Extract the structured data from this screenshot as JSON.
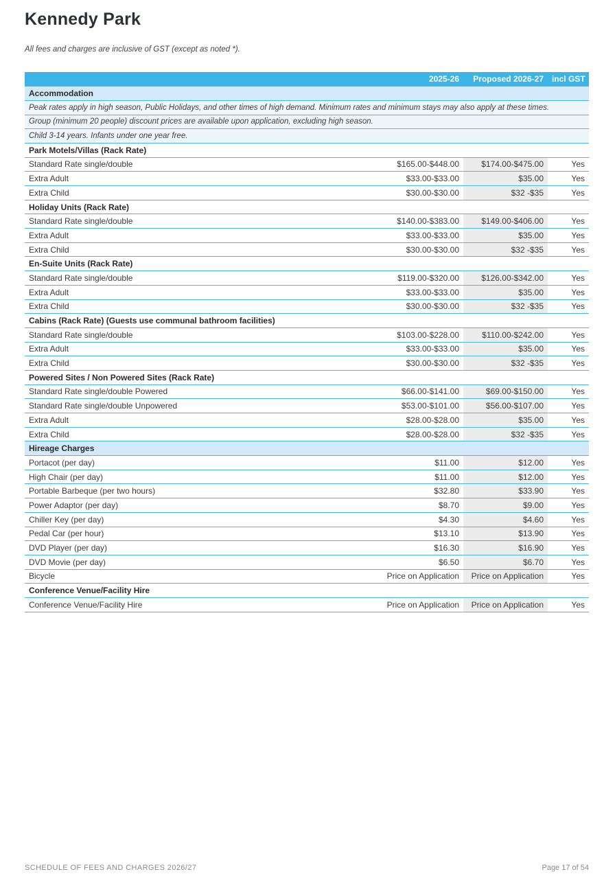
{
  "page": {
    "title": "Kennedy Park",
    "subtitle": "All fees and charges are inclusive of GST (except as noted *).",
    "footer_left": "SCHEDULE OF FEES AND CHARGES 2026/27",
    "footer_right": "Page 17 of 54"
  },
  "table": {
    "headers": [
      "",
      "2025-26",
      "Proposed 2026-27",
      "incl GST"
    ],
    "rows": [
      {
        "type": "section",
        "label": "Accommodation"
      },
      {
        "type": "note",
        "label": "Peak rates apply in high season, Public Holidays, and other times of high demand. Minimum rates and minimum stays may also apply at these times."
      },
      {
        "type": "note",
        "label": "Group (minimum 20 people) discount prices are available upon application, excluding high season."
      },
      {
        "type": "note",
        "label": "Child 3-14 years. Infants under one year free."
      },
      {
        "type": "subhead",
        "label": "Park Motels/Villas (Rack Rate)"
      },
      {
        "type": "item",
        "label": "Standard Rate single/double",
        "current": "$165.00-$448.00",
        "proposed": "$174.00-$475.00",
        "gst": "Yes"
      },
      {
        "type": "item",
        "label": "Extra Adult",
        "current": "$33.00-$33.00",
        "proposed": "$35.00",
        "gst": "Yes"
      },
      {
        "type": "item",
        "label": "Extra Child",
        "current": "$30.00-$30.00",
        "proposed": "$32 -$35",
        "gst": "Yes"
      },
      {
        "type": "subhead",
        "label": "Holiday Units (Rack Rate)"
      },
      {
        "type": "item",
        "label": "Standard Rate single/double",
        "current": "$140.00-$383.00",
        "proposed": "$149.00-$406.00",
        "gst": "Yes"
      },
      {
        "type": "item",
        "label": "Extra Adult",
        "current": "$33.00-$33.00",
        "proposed": "$35.00",
        "gst": "Yes"
      },
      {
        "type": "item",
        "label": "Extra Child",
        "current": "$30.00-$30.00",
        "proposed": "$32 -$35",
        "gst": "Yes"
      },
      {
        "type": "subhead",
        "label": "En-Suite Units (Rack Rate)"
      },
      {
        "type": "item",
        "label": "Standard Rate single/double",
        "current": "$119.00-$320.00",
        "proposed": "$126.00-$342.00",
        "gst": "Yes"
      },
      {
        "type": "item",
        "label": "Extra Adult",
        "current": "$33.00-$33.00",
        "proposed": "$35.00",
        "gst": "Yes"
      },
      {
        "type": "item",
        "label": "Extra Child",
        "current": "$30.00-$30.00",
        "proposed": "$32 -$35",
        "gst": "Yes"
      },
      {
        "type": "subhead",
        "label": "Cabins (Rack Rate) (Guests use communal bathroom facilities)"
      },
      {
        "type": "item",
        "label": "Standard Rate single/double",
        "current": "$103.00-$228.00",
        "proposed": "$110.00-$242.00",
        "gst": "Yes"
      },
      {
        "type": "item",
        "label": "Extra Adult",
        "current": "$33.00-$33.00",
        "proposed": "$35.00",
        "gst": "Yes"
      },
      {
        "type": "item",
        "label": "Extra Child",
        "current": "$30.00-$30.00",
        "proposed": "$32 -$35",
        "gst": "Yes"
      },
      {
        "type": "subhead",
        "label": "Powered Sites / Non Powered Sites (Rack Rate)"
      },
      {
        "type": "item",
        "label": "Standard Rate single/double Powered",
        "current": "$66.00-$141.00",
        "proposed": "$69.00-$150.00",
        "gst": "Yes"
      },
      {
        "type": "item",
        "label": "Standard Rate single/double Unpowered",
        "current": "$53.00-$101.00",
        "proposed": "$56.00-$107.00",
        "gst": "Yes"
      },
      {
        "type": "item",
        "label": "Extra Adult",
        "current": "$28.00-$28.00",
        "proposed": "$35.00",
        "gst": "Yes"
      },
      {
        "type": "item",
        "label": "Extra Child",
        "current": "$28.00-$28.00",
        "proposed": "$32 -$35",
        "gst": "Yes"
      },
      {
        "type": "section",
        "label": "Hireage Charges"
      },
      {
        "type": "item",
        "label": "Portacot (per day)",
        "current": "$11.00",
        "proposed": "$12.00",
        "gst": "Yes"
      },
      {
        "type": "item",
        "label": "High Chair (per day)",
        "current": "$11.00",
        "proposed": "$12.00",
        "gst": "Yes"
      },
      {
        "type": "item",
        "label": "Portable Barbeque (per two hours)",
        "current": "$32.80",
        "proposed": "$33.90",
        "gst": "Yes"
      },
      {
        "type": "item",
        "label": "Power Adaptor (per day)",
        "current": "$8.70",
        "proposed": "$9.00",
        "gst": "Yes"
      },
      {
        "type": "item",
        "label": "Chiller Key (per day)",
        "current": "$4.30",
        "proposed": "$4.60",
        "gst": "Yes"
      },
      {
        "type": "item",
        "label": "Pedal Car (per hour)",
        "current": "$13.10",
        "proposed": "$13.90",
        "gst": "Yes"
      },
      {
        "type": "item",
        "label": "DVD Player (per day)",
        "current": "$16.30",
        "proposed": "$16.90",
        "gst": "Yes"
      },
      {
        "type": "item",
        "label": "DVD Movie (per day)",
        "current": "$6.50",
        "proposed": "$6.70",
        "gst": "Yes"
      },
      {
        "type": "item",
        "label": "Bicycle",
        "current": "Price on Application",
        "proposed": "Price on Application",
        "gst": "Yes"
      },
      {
        "type": "subhead",
        "label": "Conference Venue/Facility Hire"
      },
      {
        "type": "item",
        "label": "Conference Venue/Facility Hire",
        "current": "Price on Application",
        "proposed": "Price on Application",
        "gst": "Yes"
      }
    ]
  }
}
